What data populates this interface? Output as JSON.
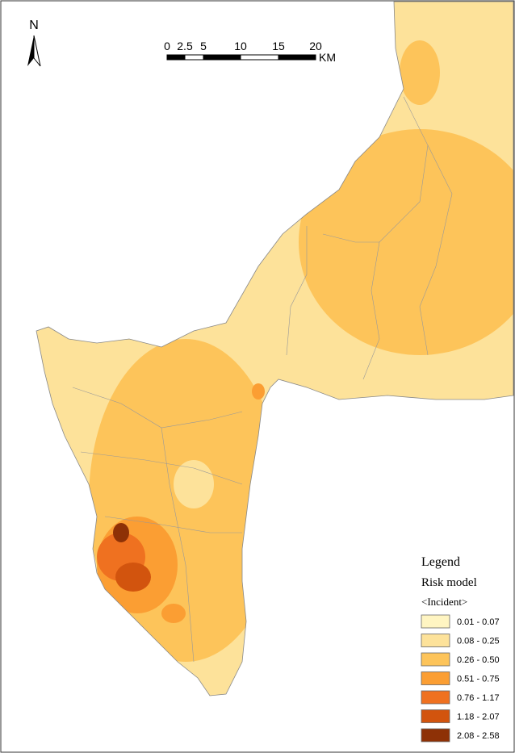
{
  "north_arrow": {
    "label": "N"
  },
  "scale_bar": {
    "labels": [
      "0",
      "2.5",
      "5",
      "10",
      "15",
      "20"
    ],
    "unit": "KM"
  },
  "legend": {
    "title": "Legend",
    "subtitle": "Risk model",
    "field": "<Incident>",
    "items": [
      {
        "label": "0.01 - 0.07",
        "color": "#fff5c2"
      },
      {
        "label": "0.08 - 0.25",
        "color": "#fde29a"
      },
      {
        "label": "0.26 - 0.50",
        "color": "#fdc45a"
      },
      {
        "label": "0.51 - 0.75",
        "color": "#fb9e33"
      },
      {
        "label": "0.76 - 1.17",
        "color": "#ef7120"
      },
      {
        "label": "1.18 - 2.07",
        "color": "#d2540e"
      },
      {
        "label": "2.08 - 2.58",
        "color": "#8e3106"
      }
    ]
  }
}
